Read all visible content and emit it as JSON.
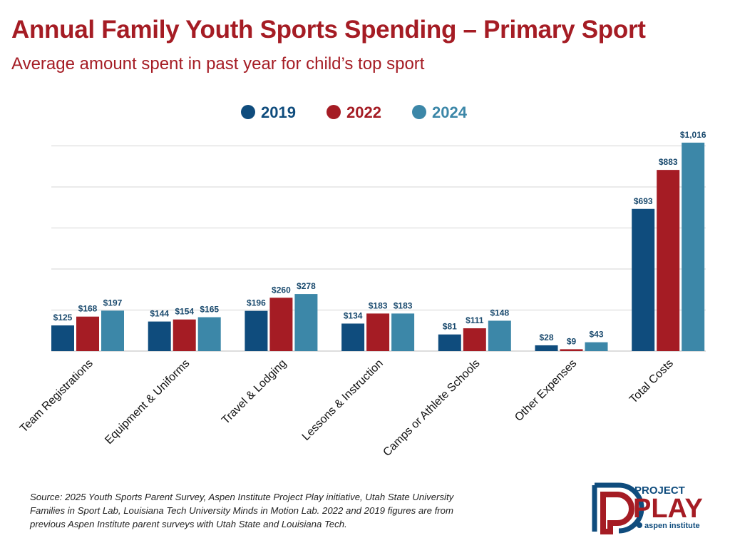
{
  "title": "Annual Family Youth Sports Spending – Primary Sport",
  "subtitle": "Average amount spent in past year for child’s top sport",
  "source": "Source: 2025 Youth Sports Parent Survey, Aspen Institute Project Play initiative, Utah State University Families in Sport Lab, Louisiana Tech University Minds in Motion Lab. 2022 and 2019 figures are from previous Aspen Institute parent surveys with Utah State and Louisiana Tech.",
  "logo": {
    "line1": "PROJECT",
    "line2": "PLAY",
    "line3": "aspen institute"
  },
  "chart_data": {
    "type": "bar",
    "categories": [
      "Team Registrations",
      "Equipment & Uniforms",
      "Travel & Lodging",
      "Lessons & Instruction",
      "Camps or Athlete Schools",
      "Other Expenses",
      "Total Costs"
    ],
    "series": [
      {
        "name": "2019",
        "color": "#0f4c7d",
        "values": [
          125,
          144,
          196,
          134,
          81,
          28,
          693
        ],
        "labels": [
          "$125",
          "$144",
          "$196",
          "$134",
          "$81",
          "$28",
          "$693"
        ]
      },
      {
        "name": "2022",
        "color": "#a51c24",
        "values": [
          168,
          154,
          260,
          183,
          111,
          9,
          883
        ],
        "labels": [
          "$168",
          "$154",
          "$260",
          "$183",
          "$111",
          "$9",
          "$883"
        ]
      },
      {
        "name": "2024",
        "color": "#3c87a8",
        "values": [
          197,
          165,
          278,
          183,
          148,
          43,
          1016
        ],
        "labels": [
          "$197",
          "$165",
          "$278",
          "$183",
          "$148",
          "$43",
          "$1,016"
        ]
      }
    ],
    "ylim": [
      0,
      1000
    ],
    "gridlines": [
      0,
      200,
      400,
      600,
      800,
      1000
    ],
    "grid": true,
    "y_axis_labels_shown": false,
    "legend_position": "top-center"
  }
}
